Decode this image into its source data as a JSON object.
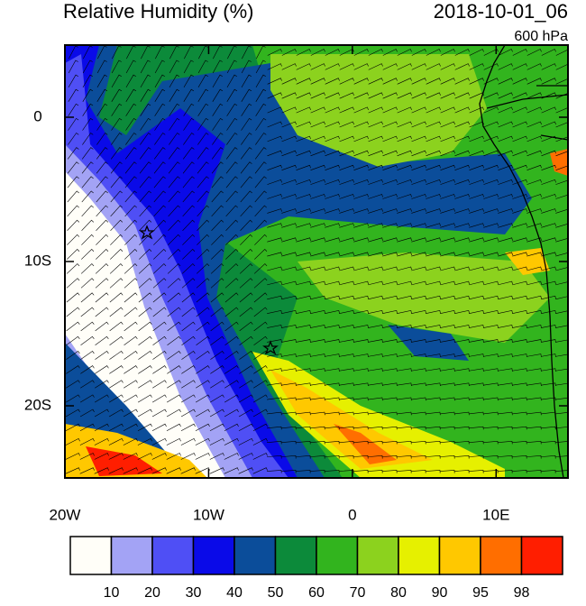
{
  "header": {
    "title": "Relative Humidity (%)",
    "time": "2018-10-01_06",
    "level": "600 hPa"
  },
  "axes": {
    "xlim": [
      -20,
      15
    ],
    "ylim": [
      -25,
      5
    ],
    "xticks": [
      {
        "value": -20,
        "label": "20W"
      },
      {
        "value": -10,
        "label": "10W"
      },
      0,
      {
        "value": 10,
        "label": "10E"
      }
    ],
    "yticks": [
      0,
      {
        "value": -10,
        "label": "10S"
      },
      {
        "value": -20,
        "label": "20S"
      }
    ]
  },
  "colorbar": {
    "levels": [
      10,
      20,
      30,
      40,
      50,
      60,
      70,
      80,
      90,
      95,
      98
    ],
    "colors": [
      "#fffef8",
      "#a3a3f5",
      "#4f4ff5",
      "#0a0ae8",
      "#0b4d9a",
      "#0c8a3a",
      "#32b41e",
      "#8cd21e",
      "#e6f000",
      "#ffc800",
      "#ff6e00",
      "#ff1e00"
    ]
  }
}
